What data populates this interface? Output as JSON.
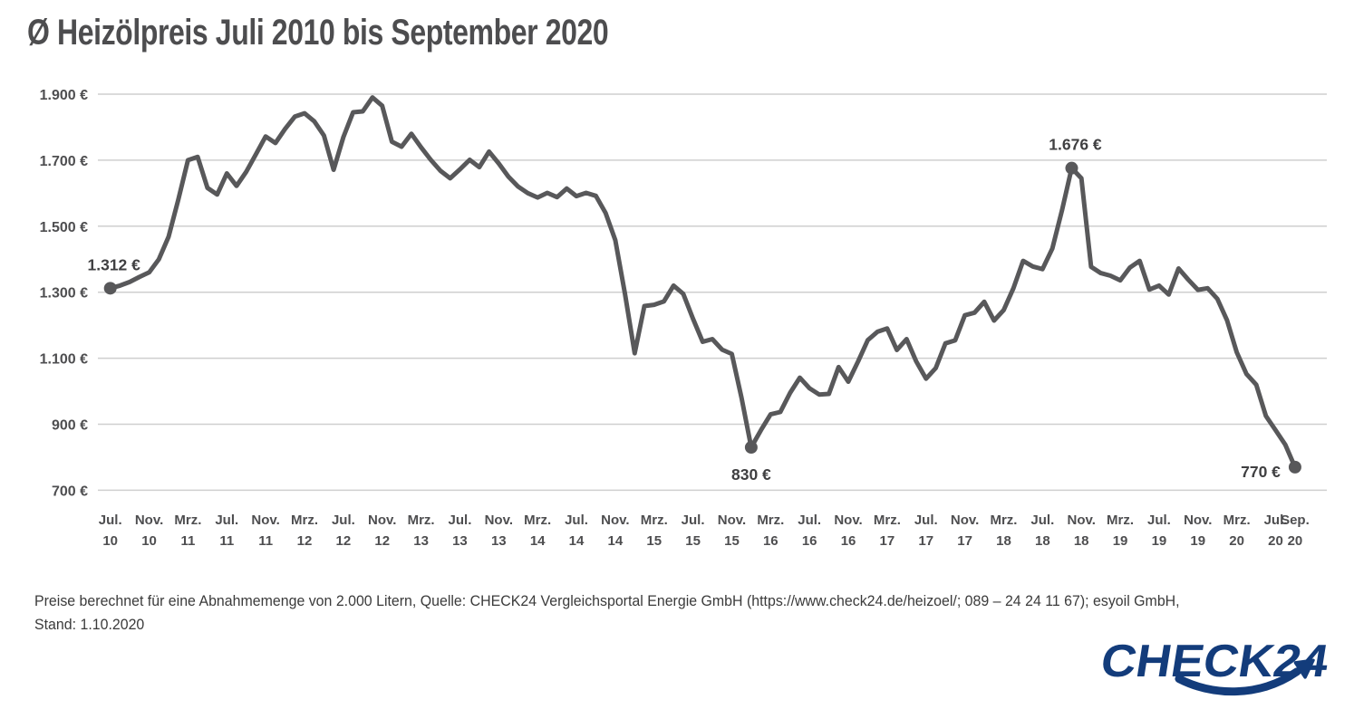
{
  "title": "Ø Heizölpreis Juli 2010 bis September 2020",
  "footer": {
    "line1": "Preise berechnet für eine Abnahmemenge von 2.000 Litern, Quelle: CHECK24 Vergleichsportal Energie GmbH (https://www.check24.de/heizoel/; 089 – 24 24 11 67); esyoil GmbH,",
    "line2": "Stand: 1.10.2020"
  },
  "logo": {
    "text": "CHECK24",
    "color": "#133C7B"
  },
  "chart_data": {
    "type": "line",
    "title": "Ø Heizölpreis Juli 2010 bis September 2020",
    "unit": "EUR per 2.000 Liter",
    "x_start": "Juli 2010",
    "x_end": "September 2020",
    "x_interval": "monthly",
    "ylim": [
      700,
      1900
    ],
    "grid": true,
    "line_color": "#58585A",
    "grid_color": "#CFCFCF",
    "y_ticks": [
      "1.900 €",
      "1.700 €",
      "1.500 €",
      "1.300 €",
      "1.100 €",
      "900 €",
      "700 €"
    ],
    "y_tick_values": [
      1900,
      1700,
      1500,
      1300,
      1100,
      900,
      700
    ],
    "x_ticks": [
      {
        "index": 0,
        "month": "Jul.",
        "year": "10"
      },
      {
        "index": 4,
        "month": "Nov.",
        "year": "10"
      },
      {
        "index": 8,
        "month": "Mrz.",
        "year": "11"
      },
      {
        "index": 12,
        "month": "Jul.",
        "year": "11"
      },
      {
        "index": 16,
        "month": "Nov.",
        "year": "11"
      },
      {
        "index": 20,
        "month": "Mrz.",
        "year": "12"
      },
      {
        "index": 24,
        "month": "Jul.",
        "year": "12"
      },
      {
        "index": 28,
        "month": "Nov.",
        "year": "12"
      },
      {
        "index": 32,
        "month": "Mrz.",
        "year": "13"
      },
      {
        "index": 36,
        "month": "Jul.",
        "year": "13"
      },
      {
        "index": 40,
        "month": "Nov.",
        "year": "13"
      },
      {
        "index": 44,
        "month": "Mrz.",
        "year": "14"
      },
      {
        "index": 48,
        "month": "Jul.",
        "year": "14"
      },
      {
        "index": 52,
        "month": "Nov.",
        "year": "14"
      },
      {
        "index": 56,
        "month": "Mrz.",
        "year": "15"
      },
      {
        "index": 60,
        "month": "Jul.",
        "year": "15"
      },
      {
        "index": 64,
        "month": "Nov.",
        "year": "15"
      },
      {
        "index": 68,
        "month": "Mrz.",
        "year": "16"
      },
      {
        "index": 72,
        "month": "Jul.",
        "year": "16"
      },
      {
        "index": 76,
        "month": "Nov.",
        "year": "16"
      },
      {
        "index": 80,
        "month": "Mrz.",
        "year": "17"
      },
      {
        "index": 84,
        "month": "Jul.",
        "year": "17"
      },
      {
        "index": 88,
        "month": "Nov.",
        "year": "17"
      },
      {
        "index": 92,
        "month": "Mrz.",
        "year": "18"
      },
      {
        "index": 96,
        "month": "Jul.",
        "year": "18"
      },
      {
        "index": 100,
        "month": "Nov.",
        "year": "18"
      },
      {
        "index": 104,
        "month": "Mrz.",
        "year": "19"
      },
      {
        "index": 108,
        "month": "Jul.",
        "year": "19"
      },
      {
        "index": 112,
        "month": "Nov.",
        "year": "19"
      },
      {
        "index": 116,
        "month": "Mrz.",
        "year": "20"
      },
      {
        "index": 120,
        "month": "Jul.",
        "year": "20"
      },
      {
        "index": 122,
        "month": "Sep.",
        "year": "20"
      }
    ],
    "values": [
      1312,
      1320,
      1331,
      1346,
      1360,
      1400,
      1468,
      1580,
      1700,
      1710,
      1616,
      1596,
      1660,
      1622,
      1665,
      1718,
      1772,
      1752,
      1795,
      1832,
      1842,
      1818,
      1775,
      1671,
      1770,
      1845,
      1848,
      1890,
      1865,
      1756,
      1741,
      1780,
      1739,
      1701,
      1668,
      1645,
      1672,
      1701,
      1679,
      1726,
      1690,
      1650,
      1620,
      1600,
      1587,
      1601,
      1588,
      1614,
      1591,
      1601,
      1592,
      1540,
      1458,
      1295,
      1115,
      1258,
      1262,
      1272,
      1320,
      1295,
      1220,
      1150,
      1158,
      1126,
      1113,
      980,
      830,
      882,
      930,
      937,
      995,
      1041,
      1009,
      990,
      992,
      1073,
      1029,
      1090,
      1155,
      1180,
      1190,
      1125,
      1158,
      1090,
      1038,
      1070,
      1145,
      1154,
      1230,
      1238,
      1271,
      1214,
      1246,
      1312,
      1395,
      1378,
      1370,
      1432,
      1548,
      1676,
      1645,
      1377,
      1358,
      1350,
      1336,
      1375,
      1395,
      1308,
      1320,
      1293,
      1372,
      1338,
      1307,
      1312,
      1280,
      1215,
      1118,
      1052,
      1020,
      925,
      882,
      838,
      770
    ],
    "annotations": [
      {
        "index": 0,
        "label": "1.312 €",
        "placement": "top"
      },
      {
        "index": 66,
        "label": "830 €",
        "placement": "bottom"
      },
      {
        "index": 99,
        "label": "1.676 €",
        "placement": "top"
      },
      {
        "index": 122,
        "label": "770 €",
        "placement": "left"
      }
    ],
    "legend": null
  }
}
